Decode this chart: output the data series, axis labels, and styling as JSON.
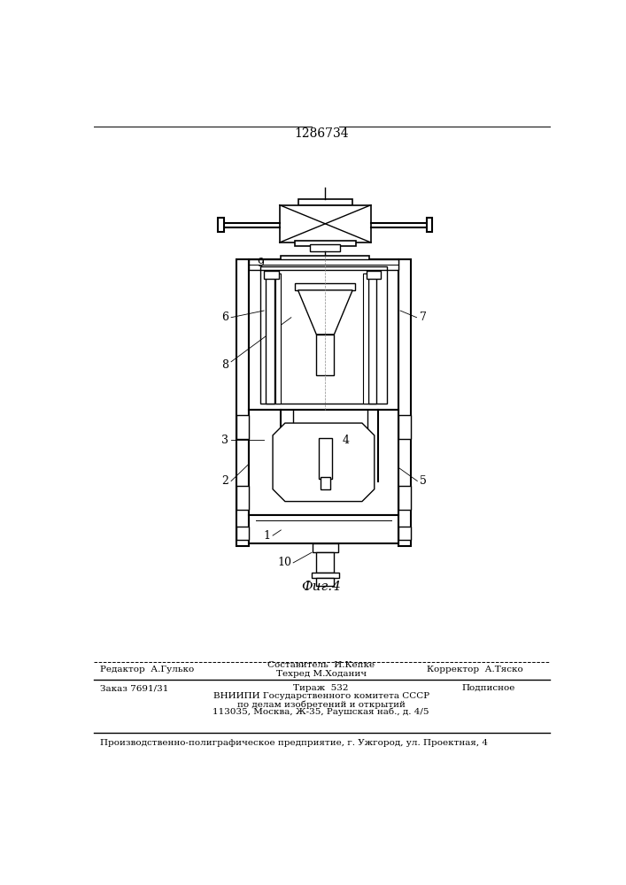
{
  "title": "1286734",
  "fig_label": "Фиг.4",
  "bg_color": "#ffffff",
  "line_color": "#000000",
  "fig_width": 7.07,
  "fig_height": 10.0,
  "footer": {
    "line1_left": "Редактор  А.Гулько",
    "line1_center_top": "Составитель  И.Кепке",
    "line1_center_bot": "Техред М.Ходанич",
    "line1_right": "Корректор  А.Тяско",
    "line2_left": "Заказ 7691/31",
    "line2_center": "Тираж  532",
    "line2_right": "Подписное",
    "line3": "ВНИИПИ Государственного комитета СССР",
    "line4": "по делам изобретений и открытий",
    "line5": "113035, Москва, Ж-35, Раушская наб., д. 4/5",
    "line6": "Производственно-полиграфическое предприятие, г. Ужгород, ул. Проектная, 4"
  }
}
